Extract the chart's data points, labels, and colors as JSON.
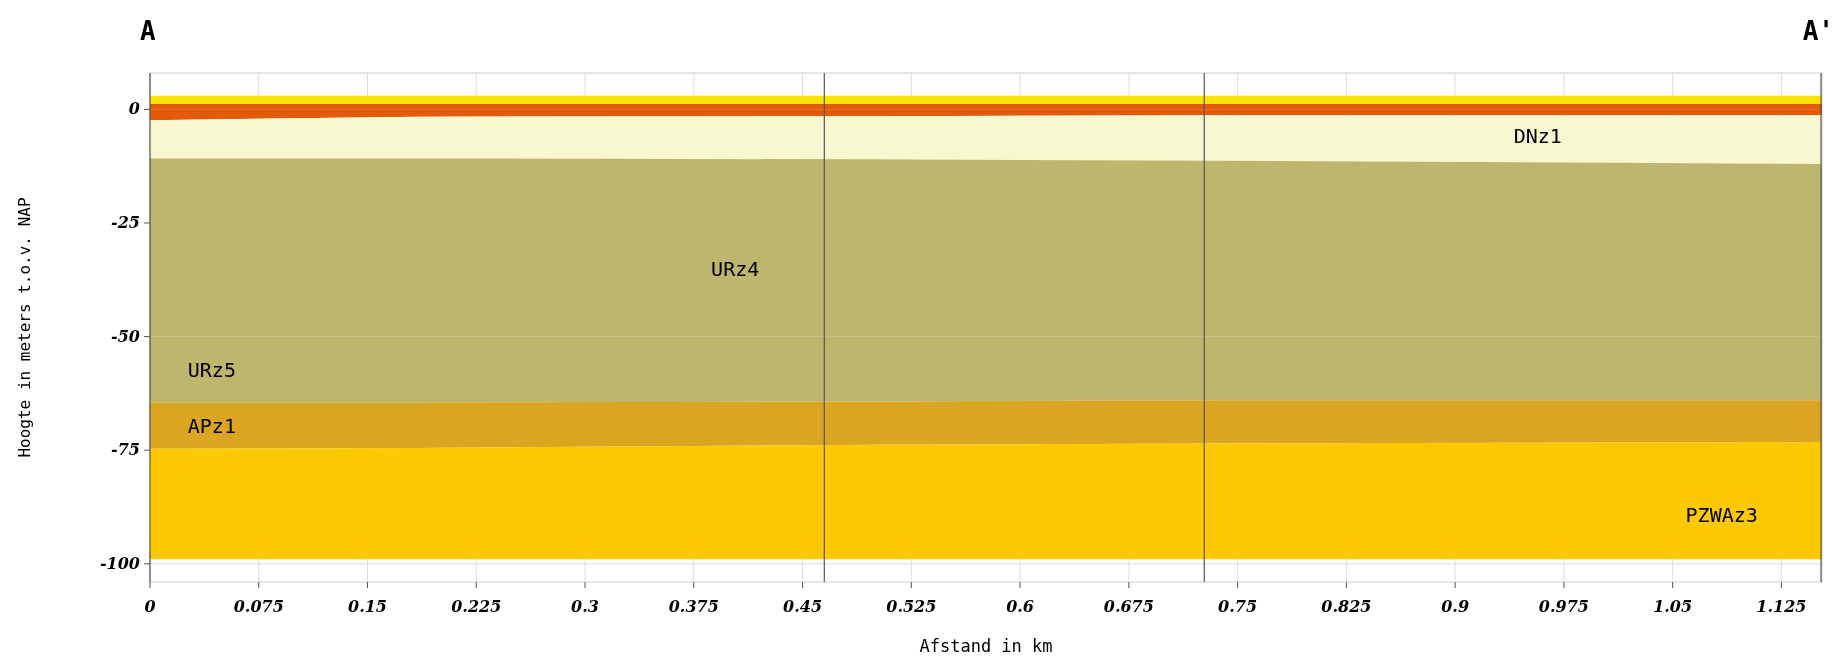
{
  "chart_data": {
    "type": "area",
    "stacked": true,
    "xlabel": "Afstand in km",
    "ylabel": "Hoogte in meters t.o.v. NAP",
    "x": [
      0,
      0.185,
      0.5,
      0.74,
      1.153
    ],
    "series": [
      {
        "color": "#e35a0a",
        "values": [
          -2.4,
          -1.6,
          -1.5,
          -1.3,
          -1.3
        ]
      },
      {
        "name": "DNz1",
        "color": "#f7f7d0",
        "values": [
          -8.4,
          -9.2,
          -9.5,
          -10,
          -10.7
        ]
      },
      {
        "name": "URz4",
        "color": "#bdb66c",
        "values": [
          -39.2,
          -39.2,
          -39,
          -38.7,
          -38
        ]
      },
      {
        "name": "URz5",
        "color": "#bdb66c",
        "values": [
          -14.5,
          -14.5,
          -14.3,
          -14,
          -14
        ]
      },
      {
        "name": "APz1",
        "color": "#daa520",
        "values": [
          -10.2,
          -10,
          -9.5,
          -9.5,
          -9.2
        ]
      },
      {
        "name": "PZWAz3",
        "color": "#fcc800",
        "values": [
          -24.3,
          -24.5,
          -25.2,
          -25.5,
          -25.8
        ]
      }
    ],
    "xlim": [
      0,
      1.153
    ],
    "xticks": [
      0,
      0.075,
      0.15,
      0.225,
      0.3,
      0.375,
      0.45,
      0.525,
      0.6,
      0.675,
      0.75,
      0.825,
      0.9,
      0.975,
      1.05,
      1.125
    ],
    "ylim": [
      -104,
      8
    ],
    "yticks": [
      0,
      -25,
      -50,
      -75,
      -100
    ],
    "grid": true,
    "bands": [
      {
        "axis": "y",
        "from": 0,
        "to": 1.2,
        "color": "#e35a0a"
      },
      {
        "axis": "y",
        "from": 1.2,
        "to": 3,
        "color": "#fce300"
      }
    ],
    "ref_lines": [
      {
        "axis": "x",
        "value": 0.465
      },
      {
        "axis": "x",
        "value": 0.727
      }
    ],
    "annotations": [
      "A",
      "A'"
    ]
  }
}
